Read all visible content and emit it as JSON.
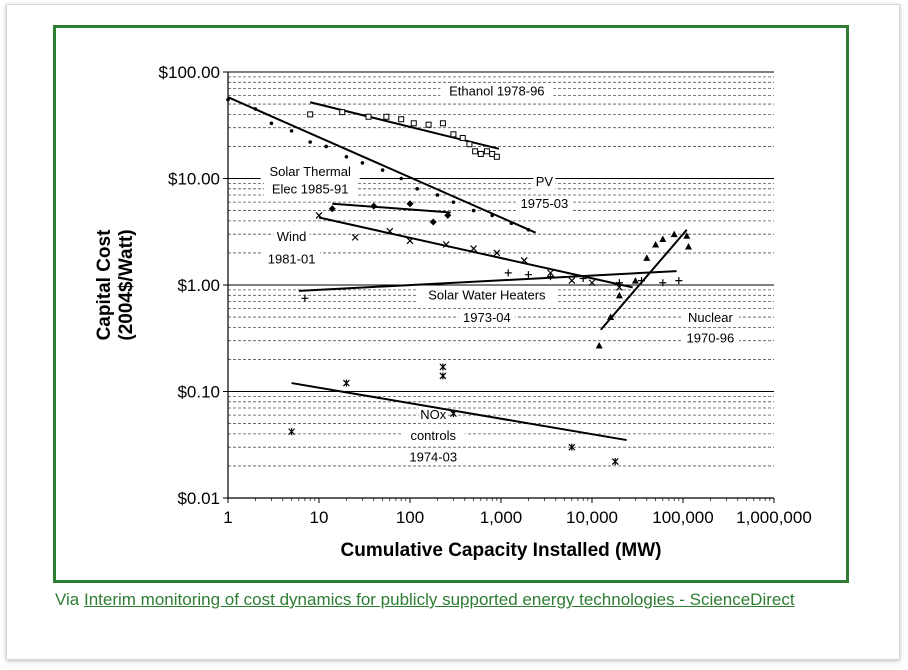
{
  "chart_data": {
    "type": "scatter",
    "xlabel": "Cumulative Capacity Installed (MW)",
    "ylabel_lines": [
      "Capital Cost",
      "(2004$/Watt)"
    ],
    "x_scale": "log",
    "y_scale": "log",
    "xlim": [
      1,
      1000000
    ],
    "ylim": [
      0.01,
      100
    ],
    "x_ticks": [
      {
        "v": 1,
        "label": "1"
      },
      {
        "v": 10,
        "label": "10"
      },
      {
        "v": 100,
        "label": "100"
      },
      {
        "v": 1000,
        "label": "1,000"
      },
      {
        "v": 10000,
        "label": "10,000"
      },
      {
        "v": 100000,
        "label": "100,000"
      },
      {
        "v": 1000000,
        "label": "1,000,000"
      }
    ],
    "y_ticks": [
      {
        "v": 100,
        "label": "$100.00"
      },
      {
        "v": 10,
        "label": "$10.00"
      },
      {
        "v": 1,
        "label": "$1.00"
      },
      {
        "v": 0.1,
        "label": "$0.10"
      },
      {
        "v": 0.01,
        "label": "$0.01"
      }
    ],
    "grid": "dashed horizontal minor lines",
    "series": [
      {
        "name": "Ethanol 1978-96",
        "marker": "square",
        "points": [
          [
            8,
            40
          ],
          [
            18,
            42
          ],
          [
            35,
            38
          ],
          [
            55,
            38
          ],
          [
            80,
            36
          ],
          [
            110,
            33
          ],
          [
            160,
            32
          ],
          [
            230,
            33
          ],
          [
            300,
            26
          ],
          [
            380,
            24
          ],
          [
            450,
            21
          ],
          [
            520,
            18
          ],
          [
            600,
            17
          ],
          [
            700,
            18
          ],
          [
            800,
            17
          ],
          [
            900,
            16
          ]
        ],
        "fit": [
          [
            8,
            52
          ],
          [
            950,
            19
          ]
        ]
      },
      {
        "name": "PV 1975-03",
        "marker": "dot",
        "points": [
          [
            1,
            55
          ],
          [
            2,
            45
          ],
          [
            3,
            33
          ],
          [
            5,
            28
          ],
          [
            8,
            22
          ],
          [
            12,
            20
          ],
          [
            20,
            16
          ],
          [
            30,
            14
          ],
          [
            50,
            12
          ],
          [
            80,
            10
          ],
          [
            120,
            8
          ],
          [
            200,
            7
          ],
          [
            300,
            6
          ],
          [
            500,
            5
          ],
          [
            800,
            4.5
          ],
          [
            1300,
            3.8
          ],
          [
            2000,
            3.3
          ]
        ],
        "fit": [
          [
            1,
            58
          ],
          [
            2400,
            3.1
          ]
        ]
      },
      {
        "name": "Solar Thermal Elec 1985-91",
        "marker": "diamond",
        "points": [
          [
            14,
            5.2
          ],
          [
            40,
            5.5
          ],
          [
            100,
            5.8
          ],
          [
            180,
            3.9
          ],
          [
            260,
            4.5
          ]
        ],
        "fit": [
          [
            14,
            5.8
          ],
          [
            280,
            4.8
          ]
        ]
      },
      {
        "name": "Wind 1981-01",
        "marker": "x",
        "points": [
          [
            10,
            4.5
          ],
          [
            25,
            2.8
          ],
          [
            60,
            3.2
          ],
          [
            100,
            2.6
          ],
          [
            250,
            2.4
          ],
          [
            500,
            2.2
          ],
          [
            900,
            2
          ],
          [
            1800,
            1.7
          ],
          [
            3500,
            1.3
          ],
          [
            6000,
            1.1
          ],
          [
            10000,
            1.05
          ],
          [
            20000,
            0.95
          ]
        ],
        "fit": [
          [
            10,
            4.3
          ],
          [
            28000,
            0.95
          ]
        ]
      },
      {
        "name": "Solar Water Heaters 1973-04",
        "marker": "plus",
        "points": [
          [
            7,
            0.75
          ],
          [
            1200,
            1.3
          ],
          [
            2000,
            1.25
          ],
          [
            3500,
            1.2
          ],
          [
            8000,
            1.15
          ],
          [
            20000,
            1.05
          ],
          [
            35000,
            1.1
          ],
          [
            60000,
            1.05
          ],
          [
            90000,
            1.1
          ]
        ],
        "fit": [
          [
            6,
            0.88
          ],
          [
            85000,
            1.35
          ]
        ]
      },
      {
        "name": "Nuclear 1970-96",
        "marker": "triangle",
        "points": [
          [
            12000,
            0.27
          ],
          [
            16000,
            0.5
          ],
          [
            20000,
            0.8
          ],
          [
            30000,
            1.1
          ],
          [
            40000,
            1.8
          ],
          [
            50000,
            2.4
          ],
          [
            60000,
            2.7
          ],
          [
            80000,
            3
          ],
          [
            110000,
            2.9
          ],
          [
            115000,
            2.3
          ]
        ],
        "fit": [
          [
            12500,
            0.38
          ],
          [
            110000,
            3.3
          ]
        ]
      },
      {
        "name": "NOx controls 1974-03",
        "marker": "star",
        "points": [
          [
            5,
            0.042
          ],
          [
            20,
            0.12
          ],
          [
            230,
            0.17
          ],
          [
            230,
            0.14
          ],
          [
            300,
            0.062
          ],
          [
            6000,
            0.03
          ],
          [
            18000,
            0.022
          ]
        ],
        "fit": [
          [
            5,
            0.12
          ],
          [
            24000,
            0.035
          ]
        ]
      }
    ],
    "annotations": [
      {
        "text": "Ethanol 1978-96",
        "x": 900,
        "y": 60
      },
      {
        "text": "Solar Thermal",
        "x": 8,
        "y": 10.5
      },
      {
        "text": "Elec 1985-91",
        "x": 8,
        "y": 7.2
      },
      {
        "text": "PV",
        "x": 3000,
        "y": 8.5
      },
      {
        "text": "1975-03",
        "x": 3000,
        "y": 5.3
      },
      {
        "text": "Wind",
        "x": 5,
        "y": 2.6
      },
      {
        "text": "1981-01",
        "x": 5,
        "y": 1.6
      },
      {
        "text": "Solar Water Heaters",
        "x": 700,
        "y": 0.73
      },
      {
        "text": "1973-04",
        "x": 700,
        "y": 0.45
      },
      {
        "text": "Nuclear",
        "x": 200000,
        "y": 0.45
      },
      {
        "text": "1970-96",
        "x": 200000,
        "y": 0.29
      },
      {
        "text": "NOx",
        "x": 180,
        "y": 0.055
      },
      {
        "text": "controls",
        "x": 180,
        "y": 0.035
      },
      {
        "text": "1974-03",
        "x": 180,
        "y": 0.022
      }
    ]
  },
  "caption": {
    "prefix": "Via ",
    "link_text": "Interim monitoring of cost dynamics for publicly supported energy technologies - ScienceDirect"
  },
  "colors": {
    "frame": "#2e7d32",
    "link": "#2e7d32",
    "ink": "#000000"
  }
}
